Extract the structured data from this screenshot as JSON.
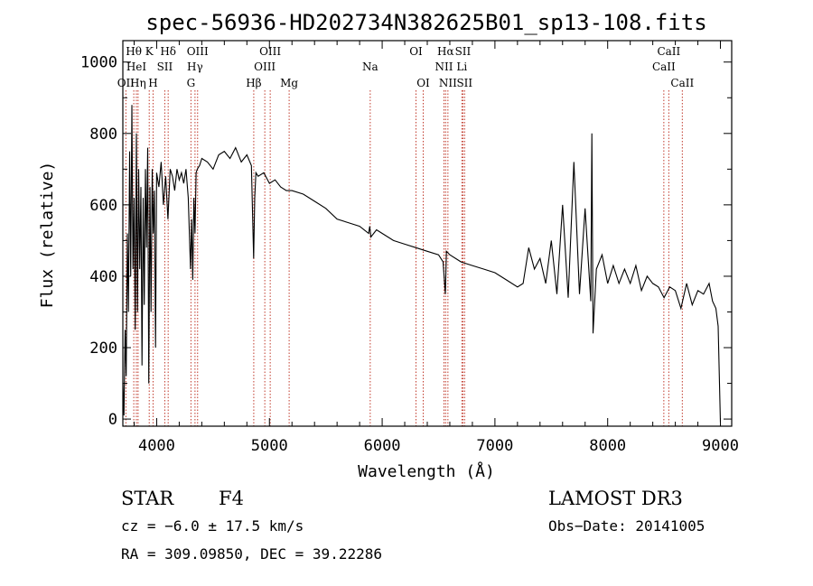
{
  "chart_data": {
    "type": "line",
    "title": "spec-56936-HD202734N382625B01_sp13-108.fits",
    "xlabel": "Wavelength (Å)",
    "ylabel": "Flux (relative)",
    "xlim": [
      3700,
      9100
    ],
    "ylim": [
      -20,
      1060
    ],
    "xticks": [
      4000,
      5000,
      6000,
      7000,
      8000,
      9000
    ],
    "yticks": [
      0,
      200,
      400,
      600,
      800,
      1000
    ],
    "grid": false,
    "line_color": "#000000",
    "marker_color": "#c0392b",
    "series": [
      {
        "x": [
          3700,
          3710,
          3720,
          3730,
          3740,
          3750,
          3760,
          3770,
          3780,
          3790,
          3800,
          3810,
          3820,
          3830,
          3840,
          3850,
          3860,
          3870,
          3880,
          3890,
          3900,
          3910,
          3920,
          3930,
          3940,
          3950,
          3960,
          3970,
          3980,
          3990,
          4000,
          4020,
          4040,
          4060,
          4080,
          4100,
          4120,
          4140,
          4160,
          4180,
          4200,
          4220,
          4240,
          4260,
          4280,
          4300,
          4310,
          4320,
          4330,
          4340,
          4350,
          4360,
          4380,
          4400,
          4450,
          4500,
          4550,
          4600,
          4650,
          4700,
          4750,
          4800,
          4840,
          4860,
          4870,
          4880,
          4900,
          4950,
          5000,
          5050,
          5100,
          5150,
          5200,
          5300,
          5400,
          5500,
          5600,
          5700,
          5800,
          5880,
          5890,
          5900,
          5950,
          6000,
          6100,
          6200,
          6300,
          6400,
          6500,
          6540,
          6560,
          6570,
          6600,
          6700,
          6800,
          6900,
          7000,
          7100,
          7200,
          7250,
          7300,
          7350,
          7400,
          7450,
          7500,
          7550,
          7600,
          7650,
          7700,
          7750,
          7800,
          7850,
          7860,
          7870,
          7900,
          7950,
          8000,
          8050,
          8100,
          8150,
          8200,
          8250,
          8300,
          8350,
          8400,
          8450,
          8500,
          8550,
          8600,
          8650,
          8700,
          8750,
          8800,
          8850,
          8900,
          8930,
          8960,
          8980,
          9000
        ],
        "y": [
          100,
          10,
          250,
          120,
          520,
          300,
          750,
          400,
          880,
          420,
          620,
          250,
          800,
          300,
          700,
          420,
          650,
          150,
          620,
          320,
          700,
          480,
          760,
          100,
          650,
          300,
          700,
          520,
          640,
          200,
          690,
          650,
          720,
          600,
          680,
          560,
          700,
          680,
          640,
          700,
          670,
          690,
          660,
          700,
          620,
          420,
          560,
          390,
          620,
          520,
          690,
          700,
          710,
          730,
          720,
          700,
          740,
          750,
          730,
          760,
          720,
          740,
          710,
          450,
          620,
          690,
          680,
          690,
          660,
          670,
          650,
          640,
          640,
          630,
          610,
          590,
          560,
          550,
          540,
          520,
          540,
          510,
          530,
          520,
          500,
          490,
          480,
          470,
          460,
          440,
          350,
          470,
          460,
          440,
          430,
          420,
          410,
          390,
          370,
          380,
          480,
          420,
          450,
          380,
          500,
          350,
          600,
          340,
          720,
          350,
          590,
          330,
          800,
          240,
          420,
          460,
          380,
          430,
          380,
          420,
          380,
          430,
          360,
          400,
          380,
          370,
          340,
          370,
          360,
          310,
          380,
          320,
          360,
          350,
          380,
          330,
          310,
          260,
          -10
        ]
      }
    ],
    "line_markers": [
      {
        "label": "OII",
        "wavelength": 3727,
        "row": 3
      },
      {
        "label": "Hθ",
        "wavelength": 3797,
        "row": 1
      },
      {
        "label": "HeI",
        "wavelength": 3820,
        "row": 2
      },
      {
        "label": "Hη",
        "wavelength": 3835,
        "row": 3
      },
      {
        "label": "K",
        "wavelength": 3934,
        "row": 1
      },
      {
        "label": "H",
        "wavelength": 3968,
        "row": 3
      },
      {
        "label": "SII",
        "wavelength": 4072,
        "row": 2
      },
      {
        "label": "Hδ",
        "wavelength": 4102,
        "row": 1
      },
      {
        "label": "G",
        "wavelength": 4304,
        "row": 3
      },
      {
        "label": "Hγ",
        "wavelength": 4340,
        "row": 2
      },
      {
        "label": "OIII",
        "wavelength": 4363,
        "row": 1
      },
      {
        "label": "Hβ",
        "wavelength": 4861,
        "row": 3
      },
      {
        "label": "OIII",
        "wavelength": 4959,
        "row": 2
      },
      {
        "label": "OIII",
        "wavelength": 5007,
        "row": 1
      },
      {
        "label": "Mg",
        "wavelength": 5175,
        "row": 3
      },
      {
        "label": "Na",
        "wavelength": 5894,
        "row": 2
      },
      {
        "label": "OI",
        "wavelength": 6300,
        "row": 1
      },
      {
        "label": "OI",
        "wavelength": 6364,
        "row": 3
      },
      {
        "label": "NII",
        "wavelength": 6548,
        "row": 2
      },
      {
        "label": "Hα",
        "wavelength": 6563,
        "row": 1
      },
      {
        "label": "NII",
        "wavelength": 6583,
        "row": 3
      },
      {
        "label": "Li",
        "wavelength": 6707,
        "row": 2
      },
      {
        "label": "SII",
        "wavelength": 6716,
        "row": 1
      },
      {
        "label": "SII",
        "wavelength": 6731,
        "row": 3
      },
      {
        "label": "CaII",
        "wavelength": 8498,
        "row": 2
      },
      {
        "label": "CaII",
        "wavelength": 8542,
        "row": 1
      },
      {
        "label": "CaII",
        "wavelength": 8662,
        "row": 3
      }
    ]
  },
  "info": {
    "class": "STAR",
    "subclass": "F4",
    "survey": "LAMOST DR3",
    "cz": "cz = −6.0 ± 17.5 km/s",
    "obs_date": "Obs−Date: 20141005",
    "radec": "RA = 309.09850, DEC =  39.22286"
  }
}
